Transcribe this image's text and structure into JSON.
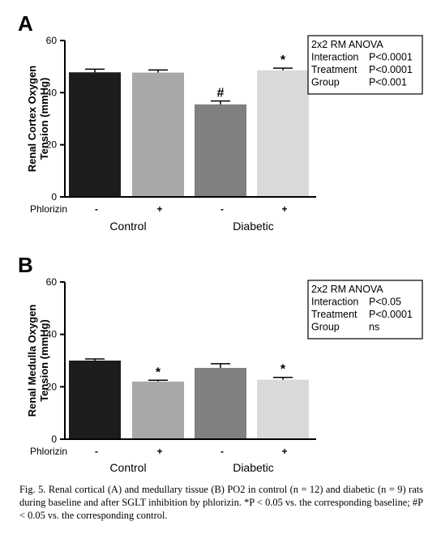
{
  "panels": [
    {
      "letter": "A",
      "ylabel_line1": "Renal Cortex Oxygen",
      "ylabel_line2": "Tension (mmHg)",
      "stats_box": [
        [
          "2x2 RM ANOVA",
          ""
        ],
        [
          "Interaction",
          "P<0.0001"
        ],
        [
          "Treatment",
          "P<0.0001"
        ],
        [
          "Group",
          "P<0.001"
        ]
      ]
    },
    {
      "letter": "B",
      "ylabel_line1": "Renal Medulla Oxygen",
      "ylabel_line2": "Tension (mmHg)",
      "stats_box": [
        [
          "2x2 RM ANOVA",
          ""
        ],
        [
          "Interaction",
          "P<0.05"
        ],
        [
          "Treatment",
          "P<0.0001"
        ],
        [
          "Group",
          "ns"
        ]
      ]
    }
  ],
  "chart_data": [
    {
      "type": "bar",
      "title": "",
      "ylabel": "Renal Cortex Oxygen Tension (mmHg)",
      "ylim": [
        0,
        60
      ],
      "yticks": [
        0,
        20,
        40,
        60
      ],
      "row_label": "Phlorizin",
      "phlorizin": [
        "-",
        "+",
        "-",
        "+"
      ],
      "groups": [
        "Control",
        "Diabetic"
      ],
      "values": [
        47.8,
        47.7,
        35.5,
        48.6
      ],
      "errors": [
        1.2,
        1.0,
        1.3,
        0.8
      ],
      "annotations": [
        "",
        "",
        "#",
        "*"
      ],
      "colors": [
        "#1c1c1c",
        "#a8a8a8",
        "#808080",
        "#d9d9d9"
      ]
    },
    {
      "type": "bar",
      "title": "",
      "ylabel": "Renal Medulla Oxygen Tension (mmHg)",
      "ylim": [
        0,
        60
      ],
      "yticks": [
        0,
        20,
        40,
        60
      ],
      "row_label": "Phlorizin",
      "phlorizin": [
        "-",
        "+",
        "-",
        "+"
      ],
      "groups": [
        "Control",
        "Diabetic"
      ],
      "values": [
        30.0,
        22.0,
        27.2,
        22.7
      ],
      "errors": [
        0.6,
        0.5,
        1.6,
        0.9
      ],
      "annotations": [
        "",
        "*",
        "",
        "*"
      ],
      "colors": [
        "#1c1c1c",
        "#a8a8a8",
        "#808080",
        "#d9d9d9"
      ]
    }
  ],
  "caption": "Fig. 5. Renal cortical (A) and medullary tissue (B) PO2 in control (n = 12) and diabetic (n = 9) rats during baseline and after SGLT inhibition by phlorizin. *P < 0.05 vs. the corresponding baseline; #P < 0.05 vs. the corresponding control."
}
